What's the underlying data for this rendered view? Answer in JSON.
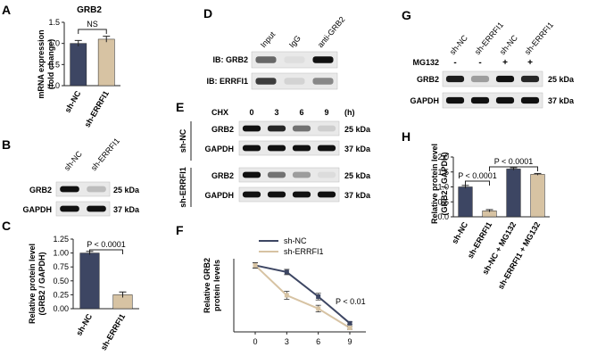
{
  "panels": {
    "A": "A",
    "B": "B",
    "C": "C",
    "D": "D",
    "E": "E",
    "F": "F",
    "G": "G",
    "H": "H"
  },
  "colors": {
    "dark": "#3d4663",
    "light": "#d7c3a3"
  },
  "chart_data": [
    {
      "panel": "A",
      "type": "bar",
      "title": "GRB2",
      "ylabel": "mRNA expression (fold change)",
      "categories": [
        "sh-NC",
        "sh-ERRFI1"
      ],
      "values": [
        1.0,
        1.1
      ],
      "errors": [
        0.07,
        0.07
      ],
      "ylim": [
        0,
        1.5
      ],
      "yticks": [
        "0.0",
        "0.5",
        "1.0",
        "1.5"
      ],
      "annotation": "NS"
    },
    {
      "panel": "C",
      "type": "bar",
      "ylabel": "Relative protein level (GRB2 / GAPDH)",
      "categories": [
        "sh-NC",
        "sh-ERRFI1"
      ],
      "values": [
        1.0,
        0.25
      ],
      "errors": [
        0.03,
        0.05
      ],
      "ylim": [
        0,
        1.25
      ],
      "yticks": [
        "0.00",
        "0.25",
        "0.50",
        "0.75",
        "1.00",
        "1.25"
      ],
      "annotation": "P < 0.0001"
    },
    {
      "panel": "F",
      "type": "line",
      "ylabel": "Relative GRB2 protein levels",
      "x": [
        0,
        3,
        6,
        9
      ],
      "xticks": [
        "0",
        "3",
        "6",
        "9"
      ],
      "xunit": "(h)",
      "series": [
        {
          "name": "sh-NC",
          "values": [
            1.0,
            0.9,
            0.53,
            0.13
          ],
          "errors": [
            0.04,
            0.04,
            0.05,
            0.02
          ]
        },
        {
          "name": "sh-ERRFI1",
          "values": [
            1.0,
            0.55,
            0.35,
            0.06
          ],
          "errors": [
            0.04,
            0.06,
            0.05,
            0.02
          ]
        }
      ],
      "ylim": [
        0,
        1.1
      ],
      "annotation": "P < 0.01"
    },
    {
      "panel": "H",
      "type": "bar",
      "ylabel": "Relative protein level (GRB2 / GAPDH)",
      "categories": [
        "sh-NC",
        "sh-ERRFI1",
        "sh-NC + MG132",
        "sh-ERRFI1 + MG132"
      ],
      "values": [
        1.0,
        0.2,
        1.6,
        1.42
      ],
      "errors": [
        0.05,
        0.04,
        0.04,
        0.03
      ],
      "ylim": [
        0,
        2.0
      ],
      "yticks": [
        "0.0",
        "0.5",
        "1.0",
        "1.5",
        "2.0"
      ],
      "annotations": [
        "P < 0.0001",
        "P < 0.0001"
      ]
    }
  ],
  "blots": {
    "B": {
      "lanes": [
        "sh-NC",
        "sh-ERRFI1"
      ],
      "rows": [
        {
          "name": "GRB2",
          "size": "25 kDa",
          "bands": [
            1.0,
            0.2
          ]
        },
        {
          "name": "GAPDH",
          "size": "37 kDa",
          "bands": [
            1.0,
            1.0
          ]
        }
      ]
    },
    "D": {
      "lanes": [
        "Input",
        "IgG",
        "anti-GRB2"
      ],
      "rows": [
        {
          "name": "IB: GRB2",
          "bands": [
            0.6,
            0.05,
            1.0
          ]
        },
        {
          "name": "IB: ERRFI1",
          "bands": [
            0.8,
            0.1,
            0.45
          ]
        }
      ]
    },
    "E": {
      "treatment": "CHX",
      "times": [
        "0",
        "3",
        "6",
        "9"
      ],
      "unit": "(h)",
      "groups": [
        {
          "name": "sh-NC",
          "rows": [
            {
              "name": "GRB2",
              "size": "25 kDa",
              "bands": [
                1.0,
                0.9,
                0.55,
                0.12
              ]
            },
            {
              "name": "GAPDH",
              "size": "37 kDa",
              "bands": [
                1.0,
                1.0,
                1.0,
                1.0
              ]
            }
          ]
        },
        {
          "name": "sh-ERRFI1",
          "rows": [
            {
              "name": "GRB2",
              "size": "25 kDa",
              "bands": [
                1.0,
                0.55,
                0.35,
                0.06
              ]
            },
            {
              "name": "GAPDH",
              "size": "37 kDa",
              "bands": [
                1.0,
                1.0,
                1.0,
                1.0
              ]
            }
          ]
        }
      ]
    },
    "G": {
      "lanes": [
        "sh-NC",
        "sh-ERRFI1",
        "sh-NC",
        "sh-ERRFI1"
      ],
      "treatment": "MG132",
      "signs": [
        "-",
        "-",
        "+",
        "+"
      ],
      "rows": [
        {
          "name": "GRB2",
          "size": "25 kDa",
          "bands": [
            0.95,
            0.35,
            1.0,
            0.9
          ]
        },
        {
          "name": "GAPDH",
          "size": "37 kDa",
          "bands": [
            1.0,
            1.0,
            1.0,
            1.0
          ]
        }
      ]
    }
  }
}
